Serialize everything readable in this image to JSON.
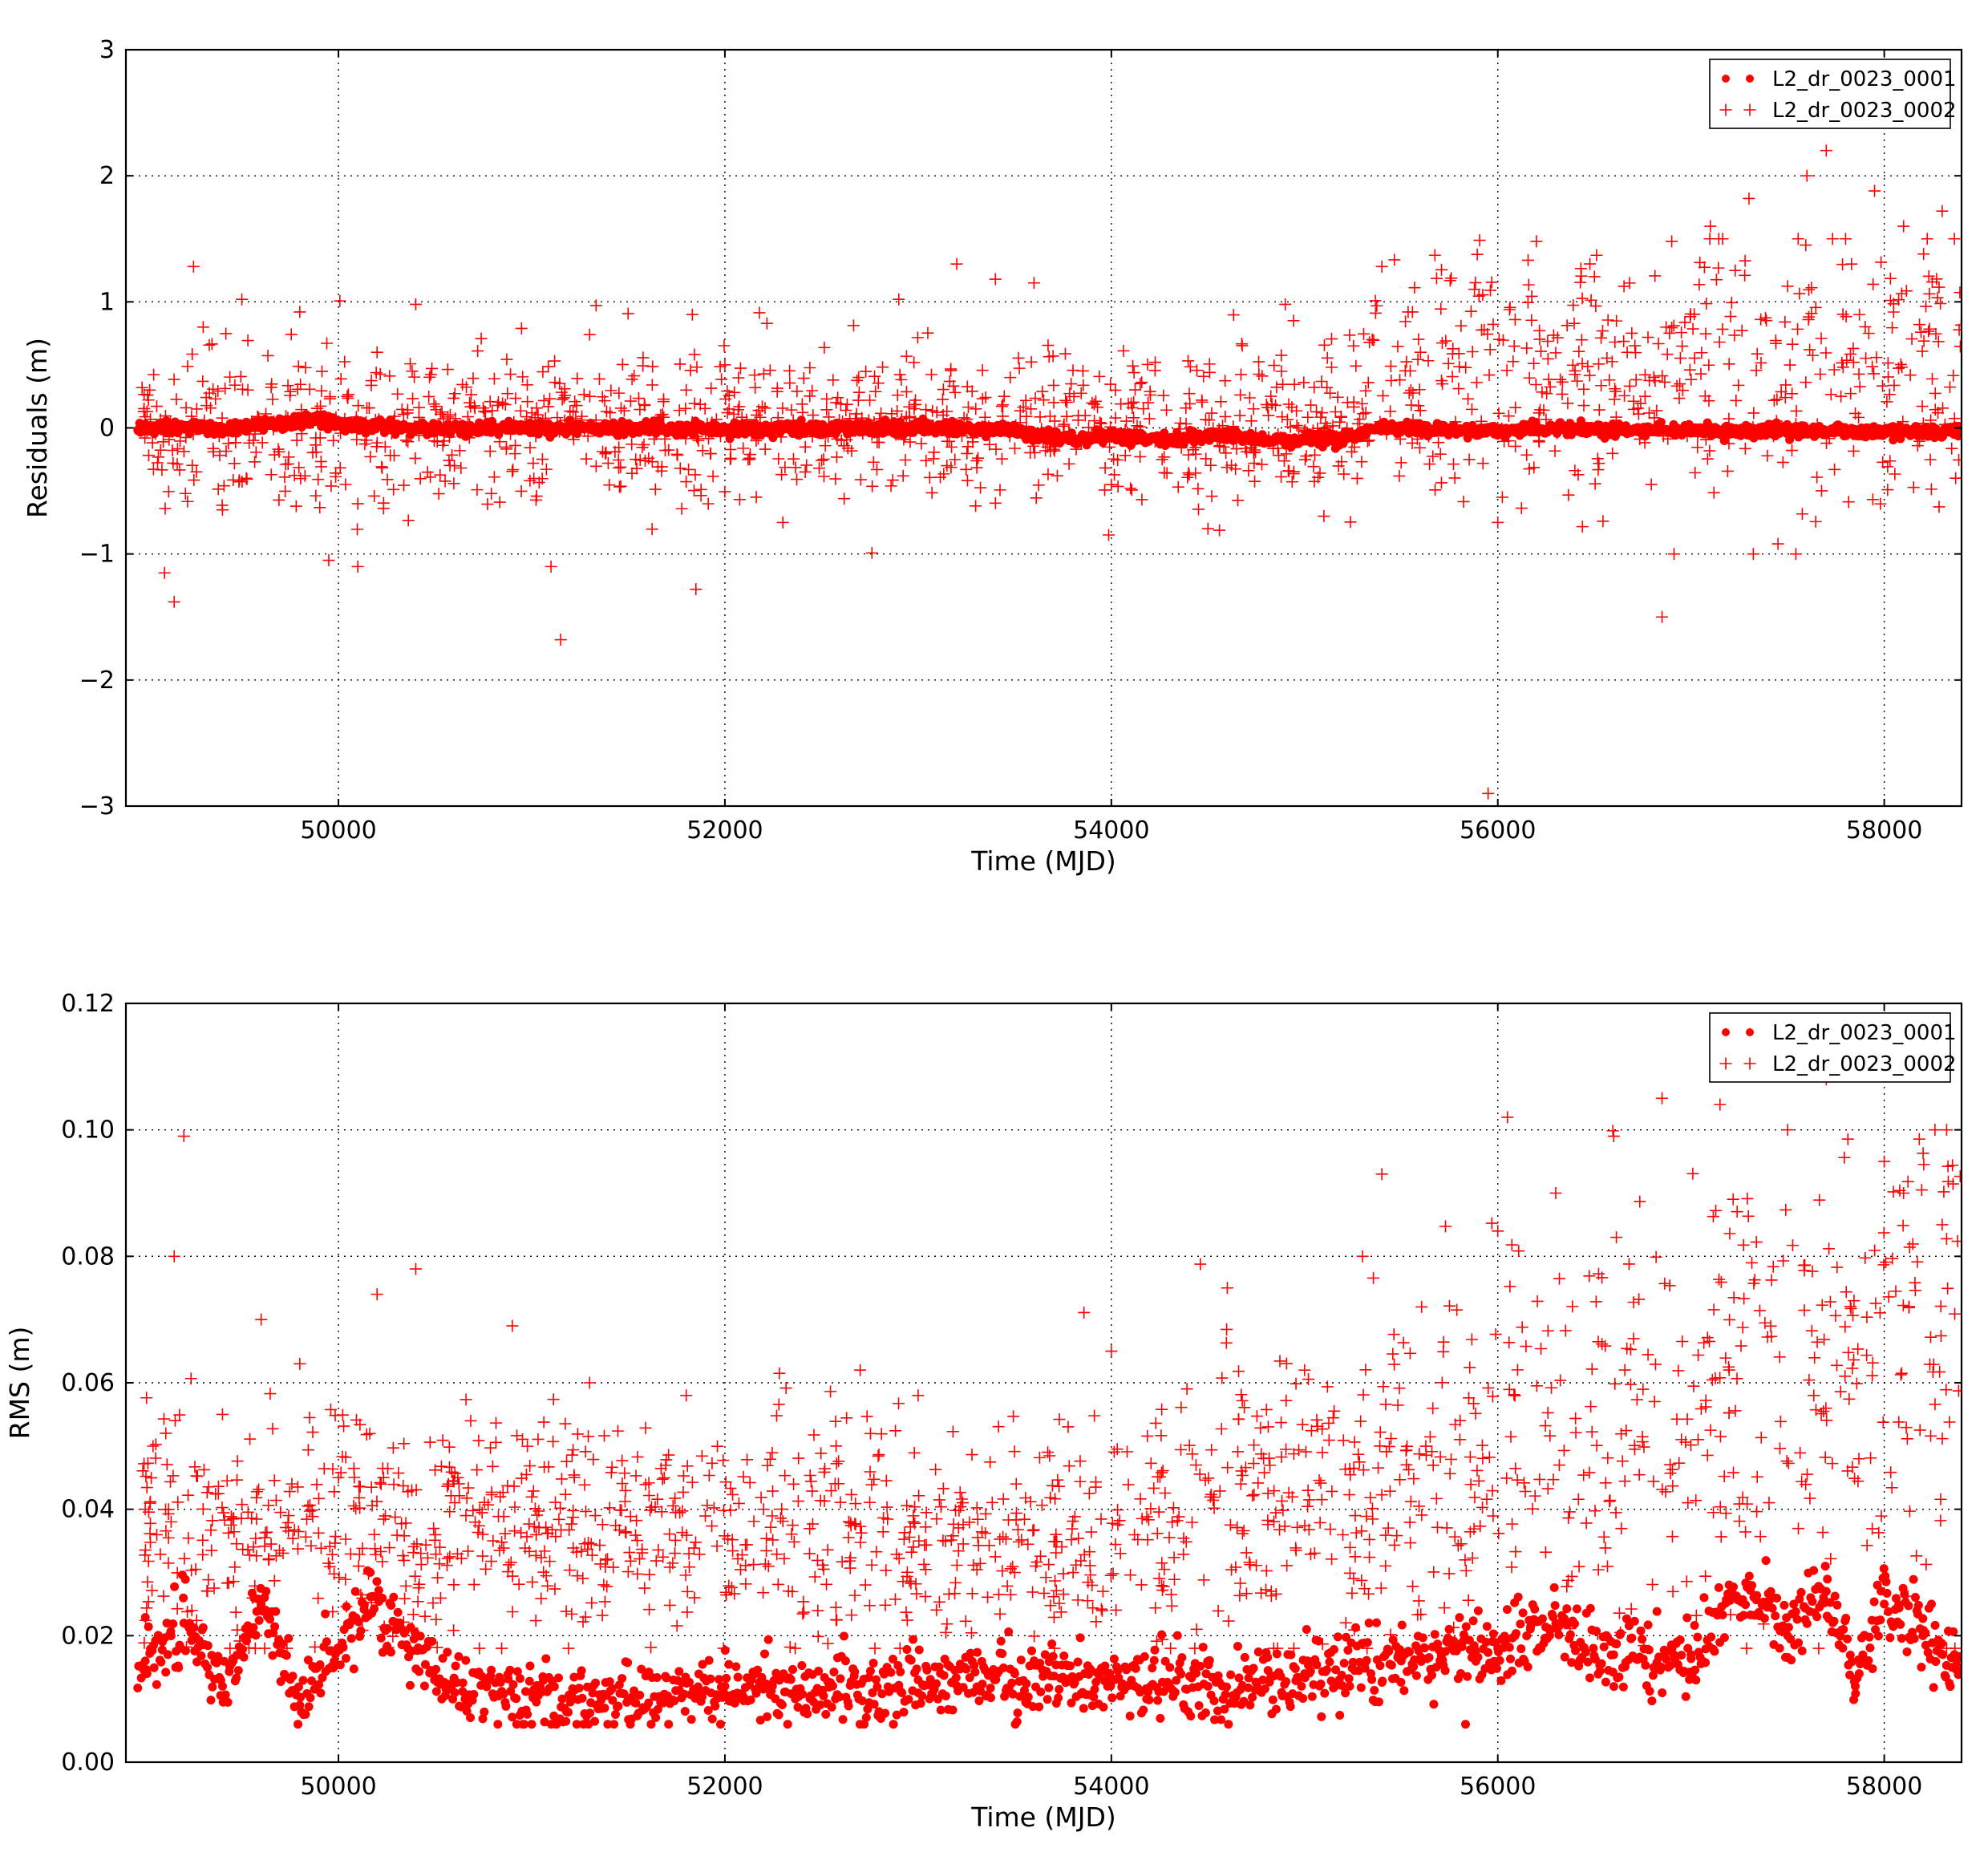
{
  "colors": {
    "series": "#ff0000",
    "grid": "#000000",
    "frame": "#000000"
  },
  "chart_data": [
    {
      "type": "scatter",
      "xlabel": "Time (MJD)",
      "ylabel": "Residuals (m)",
      "xlim": [
        48900,
        58400
      ],
      "ylim": [
        -3,
        3
      ],
      "xticks": [
        50000,
        52000,
        54000,
        56000,
        58000
      ],
      "yticks": [
        -3,
        -2,
        -1,
        0,
        1,
        2,
        3
      ],
      "ytick_labels": [
        "−3",
        "−2",
        "−1",
        "0",
        "1",
        "2",
        "3"
      ],
      "grid": true,
      "legend_position": "top-right",
      "series": [
        {
          "name": "L2_dr_0023_0001",
          "marker": "dot",
          "values_description": "dense band near 0 across full time range",
          "points": [
            [
              49000,
              0.0
            ],
            [
              49200,
              0.02
            ],
            [
              49400,
              -0.02
            ],
            [
              49600,
              0.03
            ],
            [
              49800,
              0.04
            ],
            [
              49900,
              0.08
            ],
            [
              50000,
              0.02
            ],
            [
              50200,
              0.01
            ],
            [
              50500,
              -0.01
            ],
            [
              51000,
              0.0
            ],
            [
              51500,
              0.0
            ],
            [
              52000,
              -0.01
            ],
            [
              52500,
              0.0
            ],
            [
              53000,
              0.0
            ],
            [
              53500,
              -0.02
            ],
            [
              53800,
              -0.1
            ],
            [
              54000,
              -0.06
            ],
            [
              54300,
              -0.1
            ],
            [
              54600,
              -0.05
            ],
            [
              54800,
              -0.1
            ],
            [
              55000,
              -0.1
            ],
            [
              55200,
              -0.08
            ],
            [
              55400,
              0.0
            ],
            [
              56000,
              -0.02
            ],
            [
              56500,
              -0.01
            ],
            [
              57000,
              -0.02
            ],
            [
              57500,
              -0.02
            ],
            [
              58000,
              -0.03
            ],
            [
              58350,
              -0.03
            ]
          ]
        },
        {
          "name": "L2_dr_0023_0002",
          "marker": "plus",
          "points": [
            [
              49100,
              -1.15
            ],
            [
              49150,
              -1.38
            ],
            [
              49250,
              1.28
            ],
            [
              49300,
              0.8
            ],
            [
              49400,
              -0.65
            ],
            [
              49500,
              1.02
            ],
            [
              49800,
              0.92
            ],
            [
              49950,
              -1.05
            ],
            [
              50100,
              -1.1
            ],
            [
              50200,
              0.6
            ],
            [
              50400,
              0.98
            ],
            [
              50600,
              -0.3
            ],
            [
              51100,
              -1.1
            ],
            [
              51150,
              -1.68
            ],
            [
              51300,
              0.74
            ],
            [
              51800,
              0.3
            ],
            [
              51850,
              -1.28
            ],
            [
              52000,
              0.5
            ],
            [
              52300,
              -0.75
            ],
            [
              52900,
              1.02
            ],
            [
              53200,
              1.3
            ],
            [
              53400,
              1.18
            ],
            [
              53600,
              1.15
            ],
            [
              54000,
              -0.45
            ],
            [
              54500,
              -0.8
            ],
            [
              54900,
              0.98
            ],
            [
              55100,
              -0.7
            ],
            [
              55400,
              1.28
            ],
            [
              55600,
              0.6
            ],
            [
              55950,
              -2.9
            ],
            [
              56000,
              -0.75
            ],
            [
              56200,
              1.48
            ],
            [
              56500,
              1.2
            ],
            [
              56850,
              -1.5
            ],
            [
              56900,
              1.48
            ],
            [
              57100,
              1.6
            ],
            [
              57300,
              1.82
            ],
            [
              57450,
              -0.92
            ],
            [
              57600,
              2.0
            ],
            [
              57700,
              2.2
            ],
            [
              57800,
              1.5
            ],
            [
              57950,
              1.88
            ],
            [
              58100,
              1.6
            ],
            [
              58300,
              1.72
            ]
          ]
        }
      ]
    },
    {
      "type": "scatter",
      "xlabel": "Time (MJD)",
      "ylabel": "RMS (m)",
      "xlim": [
        48900,
        58400
      ],
      "ylim": [
        0.0,
        0.12
      ],
      "xticks": [
        50000,
        52000,
        54000,
        56000,
        58000
      ],
      "yticks": [
        0.0,
        0.02,
        0.04,
        0.06,
        0.08,
        0.1,
        0.12
      ],
      "ytick_labels": [
        "0.00",
        "0.02",
        "0.04",
        "0.06",
        "0.08",
        "0.10",
        "0.12"
      ],
      "grid": true,
      "legend_position": "top-right",
      "series": [
        {
          "name": "L2_dr_0023_0001",
          "marker": "dot",
          "points": [
            [
              49000,
              0.016
            ],
            [
              49200,
              0.022
            ],
            [
              49400,
              0.012
            ],
            [
              49600,
              0.025
            ],
            [
              49800,
              0.009
            ],
            [
              50000,
              0.018
            ],
            [
              50200,
              0.026
            ],
            [
              50500,
              0.013
            ],
            [
              51000,
              0.011
            ],
            [
              51500,
              0.01
            ],
            [
              52000,
              0.012
            ],
            [
              52500,
              0.011
            ],
            [
              53000,
              0.013
            ],
            [
              53500,
              0.014
            ],
            [
              54000,
              0.013
            ],
            [
              54500,
              0.012
            ],
            [
              55000,
              0.014
            ],
            [
              55500,
              0.016
            ],
            [
              56000,
              0.018
            ],
            [
              56300,
              0.022
            ],
            [
              56600,
              0.017
            ],
            [
              57000,
              0.017
            ],
            [
              57300,
              0.028
            ],
            [
              57500,
              0.02
            ],
            [
              57700,
              0.027
            ],
            [
              57850,
              0.012
            ],
            [
              58000,
              0.025
            ],
            [
              58200,
              0.02
            ],
            [
              58350,
              0.015
            ]
          ]
        },
        {
          "name": "L2_dr_0023_0002",
          "marker": "plus",
          "points": [
            [
              49000,
              0.04
            ],
            [
              49150,
              0.08
            ],
            [
              49200,
              0.099
            ],
            [
              49400,
              0.055
            ],
            [
              49600,
              0.07
            ],
            [
              49800,
              0.063
            ],
            [
              50000,
              0.045
            ],
            [
              50200,
              0.074
            ],
            [
              50400,
              0.078
            ],
            [
              50800,
              0.035
            ],
            [
              50900,
              0.069
            ],
            [
              51300,
              0.06
            ],
            [
              51800,
              0.058
            ],
            [
              52200,
              0.04
            ],
            [
              52700,
              0.062
            ],
            [
              53000,
              0.058
            ],
            [
              53500,
              0.03
            ],
            [
              54000,
              0.065
            ],
            [
              54600,
              0.075
            ],
            [
              55000,
              0.062
            ],
            [
              55300,
              0.08
            ],
            [
              55400,
              0.093
            ],
            [
              56000,
              0.084
            ],
            [
              56050,
              0.102
            ],
            [
              56300,
              0.09
            ],
            [
              56600,
              0.099
            ],
            [
              56850,
              0.105
            ],
            [
              57150,
              0.104
            ],
            [
              57500,
              0.1
            ],
            [
              57700,
              0.108
            ],
            [
              57850,
              0.11
            ],
            [
              58000,
              0.095
            ],
            [
              58100,
              0.09
            ],
            [
              58300,
              0.085
            ]
          ]
        }
      ]
    }
  ]
}
